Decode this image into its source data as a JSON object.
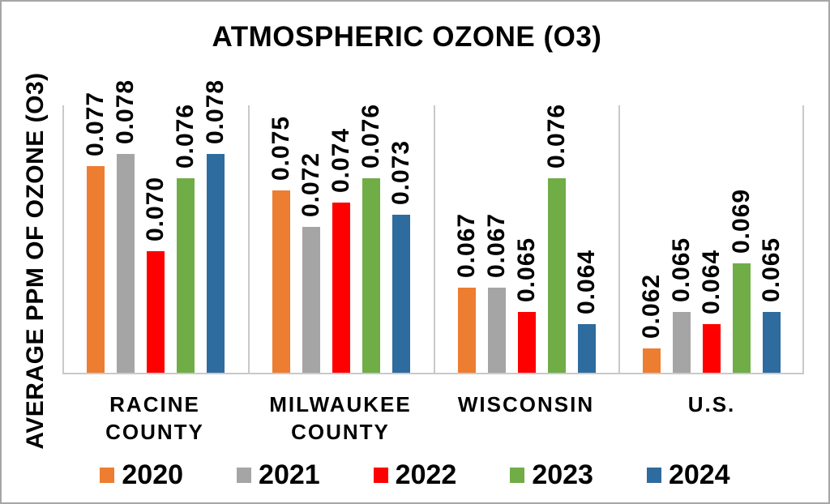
{
  "chart_data": {
    "type": "bar",
    "title": "ATMOSPHERIC OZONE (O3)",
    "ylabel": "AVERAGE PPM  OF OZONE (O3)",
    "xlabel": "",
    "categories": [
      "RACINE COUNTY",
      "MILWAUKEE COUNTY",
      "WISCONSIN",
      "U.S."
    ],
    "category_label_lines": [
      [
        "RACINE",
        "COUNTY"
      ],
      [
        "MILWAUKEE",
        "COUNTY"
      ],
      [
        "WISCONSIN"
      ],
      [
        "U.S."
      ]
    ],
    "series": [
      {
        "name": "2020",
        "color": "#ED7D31",
        "values": [
          0.077,
          0.075,
          0.067,
          0.062
        ]
      },
      {
        "name": "2021",
        "color": "#A5A5A5",
        "values": [
          0.078,
          0.072,
          0.067,
          0.065
        ]
      },
      {
        "name": "2022",
        "color": "#FF0000",
        "values": [
          0.07,
          0.074,
          0.065,
          0.064
        ]
      },
      {
        "name": "2023",
        "color": "#70AD47",
        "values": [
          0.076,
          0.076,
          0.076,
          0.069
        ]
      },
      {
        "name": "2024",
        "color": "#2E6B9E",
        "values": [
          0.078,
          0.073,
          0.064,
          0.065
        ]
      }
    ],
    "data_labels_shown": true,
    "value_decimals": 3,
    "axis_min": 0.06,
    "axis_max": 0.082,
    "y_tick_labels_shown": false,
    "gridlines": "vertical category separators only",
    "legend_position": "bottom",
    "line_color": "#C9C9C9",
    "text_color": "#000000",
    "border_color": "#A6A6A6"
  }
}
